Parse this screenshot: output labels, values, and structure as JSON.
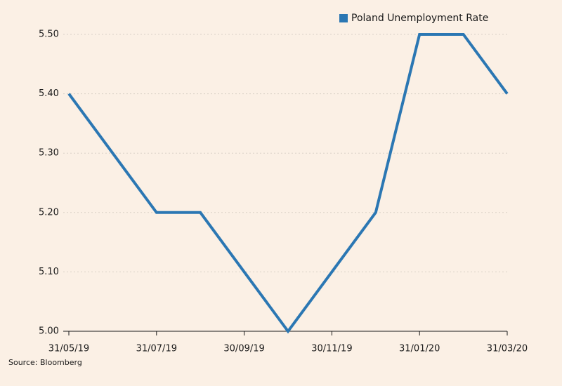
{
  "chart_data": {
    "type": "line",
    "categories": [
      "31/05/19",
      null,
      "31/07/19",
      null,
      "30/09/19",
      null,
      "30/11/19",
      null,
      "31/01/20",
      null,
      "31/03/20"
    ],
    "series": [
      {
        "name": "Poland Unemployment Rate",
        "color": "#2b77b3",
        "values": [
          5.4,
          5.3,
          5.2,
          5.2,
          5.1,
          5.0,
          5.1,
          5.2,
          5.5,
          5.5,
          5.4
        ]
      }
    ],
    "ylim": [
      5.0,
      5.5
    ],
    "yticks": [
      {
        "value": 5.0,
        "label": "5.00"
      },
      {
        "value": 5.1,
        "label": "5.10"
      },
      {
        "value": 5.2,
        "label": "5.20"
      },
      {
        "value": 5.3,
        "label": "5.30"
      },
      {
        "value": 5.4,
        "label": "5.40"
      },
      {
        "value": 5.5,
        "label": "5.50"
      }
    ],
    "grid": true,
    "legend": "top-right",
    "source": "Source: Bloomberg"
  }
}
